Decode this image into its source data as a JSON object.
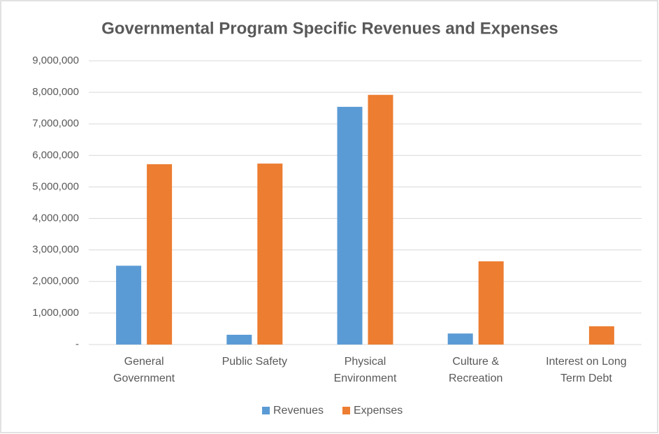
{
  "chart_data": {
    "type": "bar",
    "title": "Governmental Program Specific Revenues and Expenses",
    "categories": [
      "General Government",
      "Public Safety",
      "Physical Environment",
      "Culture & Recreation",
      "Interest on Long Term Debt"
    ],
    "series": [
      {
        "name": "Revenues",
        "color": "#5b9bd5",
        "values": [
          2500000,
          310000,
          7540000,
          350000,
          0
        ]
      },
      {
        "name": "Expenses",
        "color": "#ed7d31",
        "values": [
          5720000,
          5740000,
          7920000,
          2640000,
          580000
        ]
      }
    ],
    "ylim": [
      0,
      9000000
    ],
    "yticks": [
      {
        "value": 0,
        "label": "-"
      },
      {
        "value": 1000000,
        "label": "1,000,000"
      },
      {
        "value": 2000000,
        "label": "2,000,000"
      },
      {
        "value": 3000000,
        "label": "3,000,000"
      },
      {
        "value": 4000000,
        "label": "4,000,000"
      },
      {
        "value": 5000000,
        "label": "5,000,000"
      },
      {
        "value": 6000000,
        "label": "6,000,000"
      },
      {
        "value": 7000000,
        "label": "7,000,000"
      },
      {
        "value": 8000000,
        "label": "8,000,000"
      },
      {
        "value": 9000000,
        "label": "9,000,000"
      }
    ],
    "grid": true,
    "legend": "bottom"
  }
}
